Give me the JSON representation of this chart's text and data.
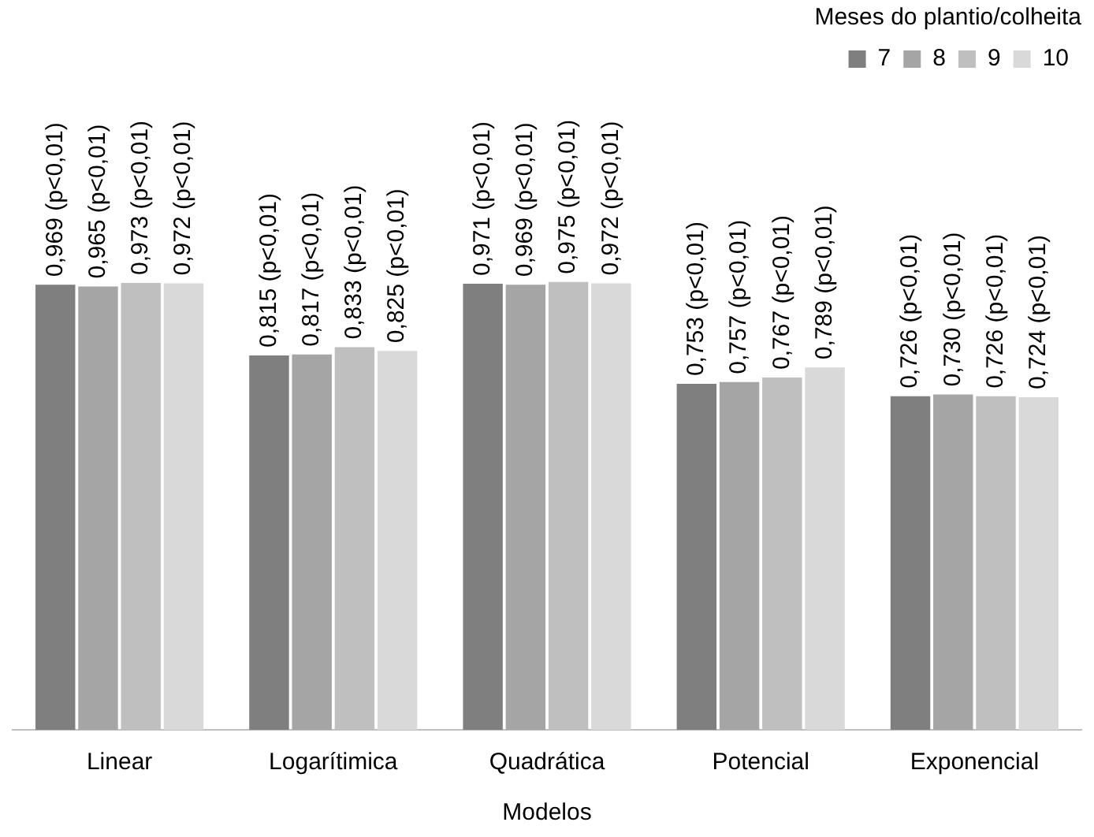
{
  "chart_data": {
    "type": "bar",
    "xlabel": "Modelos",
    "legend_title": "Meses do plantio/colheita",
    "legend": "top right",
    "grid": false,
    "categories": [
      "Linear",
      "Logarítimica",
      "Quadrática",
      "Potencial",
      "Exponencial"
    ],
    "series": [
      {
        "name": "7",
        "color": "#7f7f7f",
        "values": [
          0.969,
          0.815,
          0.971,
          0.753,
          0.726
        ],
        "value_labels": [
          "0,969 (p<0,01)",
          "0,815 (p<0,01)",
          "0,971 (p<0,01)",
          "0,753 (p<0,01)",
          "0,726 (p<0,01)"
        ]
      },
      {
        "name": "8",
        "color": "#a5a5a5",
        "values": [
          0.965,
          0.817,
          0.969,
          0.757,
          0.73
        ],
        "value_labels": [
          "0,965 (p<0,01)",
          "0,817 (p<0,01)",
          "0,969 (p<0,01)",
          "0,757 (p<0,01)",
          "0,730 (p<0,01)"
        ]
      },
      {
        "name": "9",
        "color": "#bfbfbf",
        "values": [
          0.973,
          0.833,
          0.975,
          0.767,
          0.726
        ],
        "value_labels": [
          "0,973 (p<0,01)",
          "0,833 (p<0,01)",
          "0,975 (p<0,01)",
          "0,767 (p<0,01)",
          "0,726 (p<0,01)"
        ]
      },
      {
        "name": "10",
        "color": "#d9d9d9",
        "values": [
          0.972,
          0.825,
          0.972,
          0.789,
          0.724
        ],
        "value_labels": [
          "0,972 (p<0,01)",
          "0,825 (p<0,01)",
          "0,972 (p<0,01)",
          "0,789 (p<0,01)",
          "0,724 (p<0,01)"
        ]
      }
    ]
  }
}
